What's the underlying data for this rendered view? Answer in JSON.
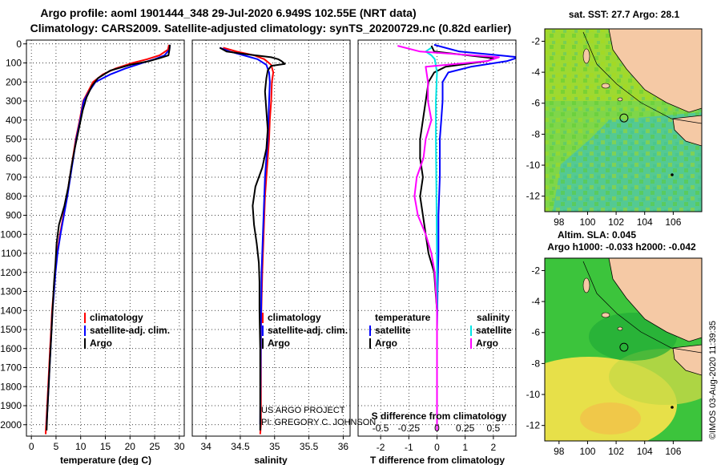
{
  "header": {
    "title_line1": "Argo profile: aoml 1901444_348 29-Jul-2020 6.949S 102.55E (NRT data)",
    "title_line2": "Climatology: CARS2009. Satellite-adjusted climatology: synTS_20200729.nc (0.82d earlier)"
  },
  "colors": {
    "climatology": "#ff0000",
    "satellite": "#0000ff",
    "argo": "#000000",
    "sat_salinity": "#00e5e5",
    "argo_salinity": "#ff00ff"
  },
  "depth_ticks": [
    0,
    100,
    200,
    300,
    400,
    500,
    600,
    700,
    800,
    900,
    1000,
    1100,
    1200,
    1300,
    1400,
    1500,
    1600,
    1700,
    1800,
    1900,
    2000
  ],
  "chart_data": [
    {
      "type": "line",
      "name": "temperature",
      "xlabel": "temperature (deg C)",
      "ylabel": "depth",
      "xlim": [
        -1,
        31
      ],
      "ylim": [
        2060,
        -20
      ],
      "xticks": [
        0,
        5,
        10,
        15,
        20,
        25,
        30
      ],
      "legend": [
        "climatology",
        "satellite-adj. clim.",
        "Argo"
      ],
      "series": [
        {
          "name": "climatology",
          "color": "#ff0000",
          "points": [
            [
              27.9,
              5
            ],
            [
              27.7,
              30
            ],
            [
              26,
              60
            ],
            [
              23.5,
              80
            ],
            [
              20.5,
              100
            ],
            [
              17,
              130
            ],
            [
              14.5,
              160
            ],
            [
              12.5,
              200
            ],
            [
              11.5,
              250
            ],
            [
              10.5,
              300
            ],
            [
              9.8,
              400
            ],
            [
              9,
              500
            ],
            [
              8.4,
              600
            ],
            [
              7.8,
              700
            ],
            [
              7.2,
              800
            ],
            [
              6.5,
              900
            ],
            [
              5.8,
              1000
            ],
            [
              5.2,
              1100
            ],
            [
              4.8,
              1200
            ],
            [
              4.5,
              1300
            ],
            [
              4.2,
              1400
            ],
            [
              4,
              1500
            ],
            [
              3.8,
              1600
            ],
            [
              3.6,
              1700
            ],
            [
              3.4,
              1800
            ],
            [
              3.2,
              1900
            ],
            [
              3,
              2000
            ],
            [
              2.9,
              2050
            ]
          ]
        },
        {
          "name": "satellite-adj. clim.",
          "color": "#0000ff",
          "points": [
            [
              28.1,
              5
            ],
            [
              28,
              30
            ],
            [
              27,
              60
            ],
            [
              25,
              80
            ],
            [
              22.5,
              100
            ],
            [
              19,
              130
            ],
            [
              16,
              160
            ],
            [
              13,
              200
            ],
            [
              11.7,
              250
            ],
            [
              10.6,
              300
            ],
            [
              9.9,
              400
            ],
            [
              9.1,
              500
            ],
            [
              8.5,
              600
            ],
            [
              7.9,
              700
            ],
            [
              7.3,
              800
            ],
            [
              6.6,
              900
            ],
            [
              5.9,
              1000
            ],
            [
              5.3,
              1100
            ],
            [
              4.9,
              1200
            ],
            [
              4.6,
              1300
            ],
            [
              4.3,
              1400
            ],
            [
              4.1,
              1500
            ],
            [
              3.9,
              1600
            ],
            [
              3.7,
              1700
            ],
            [
              3.5,
              1800
            ],
            [
              3.3,
              1900
            ],
            [
              3.1,
              2000
            ]
          ]
        },
        {
          "name": "Argo",
          "color": "#000000",
          "points": [
            [
              28.1,
              5
            ],
            [
              28,
              30
            ],
            [
              27.8,
              60
            ],
            [
              26,
              75
            ],
            [
              24,
              90
            ],
            [
              20,
              110
            ],
            [
              16,
              140
            ],
            [
              13.5,
              180
            ],
            [
              12.3,
              220
            ],
            [
              11.2,
              280
            ],
            [
              10.4,
              350
            ],
            [
              9.6,
              450
            ],
            [
              8.8,
              550
            ],
            [
              8.1,
              650
            ],
            [
              7.5,
              750
            ],
            [
              6.7,
              850
            ],
            [
              5.6,
              950
            ],
            [
              5.1,
              1050
            ],
            [
              4.9,
              1150
            ],
            [
              4.6,
              1250
            ],
            [
              4.4,
              1350
            ],
            [
              4.2,
              1450
            ],
            [
              4,
              1550
            ],
            [
              3.8,
              1650
            ],
            [
              3.6,
              1750
            ],
            [
              3.4,
              1850
            ],
            [
              3.2,
              1950
            ],
            [
              3.1,
              2030
            ]
          ]
        }
      ]
    },
    {
      "type": "line",
      "name": "salinity",
      "xlabel": "salinity",
      "xlim": [
        33.8,
        36.1
      ],
      "ylim": [
        2060,
        -20
      ],
      "xticks": [
        34,
        34.5,
        35,
        35.5,
        36
      ],
      "legend": [
        "climatology",
        "satellite-adj. clim.",
        "Argo"
      ],
      "annotations": [
        "US ARGO PROJECT",
        "PI: GREGORY C. JOHNSON"
      ],
      "series": [
        {
          "name": "climatology",
          "color": "#ff0000",
          "points": [
            [
              34.25,
              20
            ],
            [
              34.45,
              40
            ],
            [
              34.7,
              60
            ],
            [
              34.85,
              80
            ],
            [
              34.95,
              110
            ],
            [
              34.98,
              150
            ],
            [
              34.96,
              200
            ],
            [
              34.95,
              300
            ],
            [
              34.93,
              400
            ],
            [
              34.92,
              500
            ],
            [
              34.9,
              600
            ],
            [
              34.88,
              700
            ],
            [
              34.86,
              800
            ],
            [
              34.84,
              1000
            ],
            [
              34.82,
              1200
            ],
            [
              34.8,
              1500
            ],
            [
              34.8,
              2000
            ],
            [
              34.79,
              2050
            ]
          ]
        },
        {
          "name": "satellite-adj. clim.",
          "color": "#0000ff",
          "points": [
            [
              34.2,
              20
            ],
            [
              34.35,
              40
            ],
            [
              34.55,
              60
            ],
            [
              34.75,
              80
            ],
            [
              34.88,
              110
            ],
            [
              34.92,
              150
            ],
            [
              34.93,
              200
            ],
            [
              34.92,
              300
            ],
            [
              34.91,
              400
            ],
            [
              34.9,
              500
            ],
            [
              34.88,
              600
            ],
            [
              34.86,
              700
            ],
            [
              34.85,
              800
            ],
            [
              34.83,
              1000
            ],
            [
              34.81,
              1200
            ],
            [
              34.8,
              1500
            ],
            [
              34.79,
              2000
            ]
          ]
        },
        {
          "name": "Argo",
          "color": "#000000",
          "points": [
            [
              34.2,
              20
            ],
            [
              34.3,
              40
            ],
            [
              34.6,
              55
            ],
            [
              34.95,
              70
            ],
            [
              35.05,
              80
            ],
            [
              35.1,
              90
            ],
            [
              35.15,
              105
            ],
            [
              34.95,
              115
            ],
            [
              34.9,
              140
            ],
            [
              34.88,
              180
            ],
            [
              34.86,
              250
            ],
            [
              34.88,
              350
            ],
            [
              34.9,
              450
            ],
            [
              34.88,
              550
            ],
            [
              34.82,
              650
            ],
            [
              34.72,
              750
            ],
            [
              34.68,
              850
            ],
            [
              34.7,
              950
            ],
            [
              34.74,
              1050
            ],
            [
              34.77,
              1150
            ],
            [
              34.78,
              1250
            ],
            [
              34.78,
              1400
            ],
            [
              34.79,
              1600
            ],
            [
              34.79,
              1800
            ],
            [
              34.79,
              2030
            ]
          ]
        }
      ]
    },
    {
      "type": "line",
      "name": "differences",
      "xlabel": "T difference from climatology",
      "xlabel2": "S difference from climatology",
      "xlim": [
        -2.8,
        2.8
      ],
      "ylim": [
        2060,
        -20
      ],
      "xticks": [
        -2,
        -1,
        0,
        1,
        2
      ],
      "xticks2": [
        -0.5,
        -0.25,
        0,
        0.25,
        0.5
      ],
      "legend": {
        "temperature": [
          "satellite",
          "Argo"
        ],
        "salinity": [
          "satellite",
          "Argo"
        ],
        "temperature_title": "temperature",
        "salinity_title": "salinity"
      },
      "series": [
        {
          "name": "T satellite",
          "color": "#0000ff",
          "points": [
            [
              -0.1,
              5
            ],
            [
              0.8,
              40
            ],
            [
              2.9,
              70
            ],
            [
              2.5,
              90
            ],
            [
              1.2,
              120
            ],
            [
              0.4,
              150
            ],
            [
              0.2,
              200
            ],
            [
              0.2,
              300
            ],
            [
              0.15,
              400
            ],
            [
              0.1,
              500
            ],
            [
              0.1,
              700
            ],
            [
              0.05,
              900
            ],
            [
              0.05,
              1100
            ],
            [
              0.02,
              1300
            ],
            [
              0,
              1500
            ],
            [
              0,
              2000
            ]
          ]
        },
        {
          "name": "T Argo",
          "color": "#000000",
          "points": [
            [
              -0.2,
              10
            ],
            [
              -0.1,
              40
            ],
            [
              2,
              75
            ],
            [
              1.8,
              90
            ],
            [
              0.3,
              120
            ],
            [
              -0.1,
              150
            ],
            [
              -0.3,
              200
            ],
            [
              -0.4,
              300
            ],
            [
              -0.5,
              400
            ],
            [
              -0.6,
              500
            ],
            [
              -0.6,
              600
            ],
            [
              -0.5,
              700
            ],
            [
              -0.6,
              800
            ],
            [
              -0.5,
              900
            ],
            [
              -0.4,
              1000
            ],
            [
              -0.3,
              1100
            ],
            [
              -0.1,
              1200
            ],
            [
              -0.05,
              1300
            ],
            [
              0,
              1400
            ],
            [
              0,
              2030
            ]
          ]
        },
        {
          "name": "S satellite",
          "color": "#00e5e5",
          "points": [
            [
              -0.05,
              20
            ],
            [
              -0.1,
              40
            ],
            [
              -0.05,
              60
            ],
            [
              -0.02,
              80
            ],
            [
              0,
              150
            ],
            [
              -0.01,
              300
            ],
            [
              -0.01,
              500
            ],
            [
              -0.005,
              800
            ],
            [
              0,
              1200
            ],
            [
              0,
              2000
            ]
          ]
        },
        {
          "name": "S Argo",
          "color": "#ff00ff",
          "points": [
            [
              -0.35,
              10
            ],
            [
              -0.15,
              40
            ],
            [
              0.55,
              70
            ],
            [
              0.45,
              90
            ],
            [
              -0.1,
              120
            ],
            [
              -0.08,
              200
            ],
            [
              -0.08,
              300
            ],
            [
              -0.05,
              400
            ],
            [
              -0.1,
              500
            ],
            [
              -0.12,
              600
            ],
            [
              -0.18,
              700
            ],
            [
              -0.2,
              800
            ],
            [
              -0.17,
              900
            ],
            [
              -0.1,
              1000
            ],
            [
              -0.05,
              1100
            ],
            [
              -0.02,
              1200
            ],
            [
              0,
              1400
            ],
            [
              0,
              2030
            ]
          ]
        }
      ]
    },
    {
      "type": "heatmap",
      "name": "sst-map",
      "title": "sat. SST: 27.7 Argo: 28.1",
      "xlim": [
        97,
        108
      ],
      "ylim": [
        -13,
        -1.2
      ],
      "xticks": [
        98,
        100,
        102,
        104,
        106
      ],
      "yticks": [
        -2,
        -4,
        -6,
        -8,
        -10,
        -12
      ],
      "argo_position": [
        102.55,
        -6.949
      ]
    },
    {
      "type": "heatmap",
      "name": "sla-map",
      "title_line1": "Altim. SLA: 0.045",
      "title_line2": "Argo h1000: -0.033 h2000: -0.042",
      "xlim": [
        97,
        108
      ],
      "ylim": [
        -13,
        -1.2
      ],
      "xticks": [
        98,
        100,
        102,
        104,
        106
      ],
      "yticks": [
        -2,
        -4,
        -6,
        -8,
        -10,
        -12
      ],
      "argo_position": [
        102.55,
        -6.949
      ]
    }
  ],
  "footer": {
    "stamp": "©IMOS 03-Aug-2020 11:39:35"
  }
}
